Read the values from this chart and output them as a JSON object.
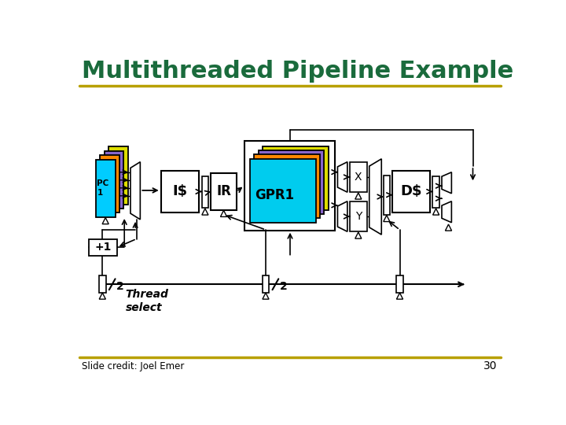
{
  "title": "Multithreaded Pipeline Example",
  "title_color": "#1a6b3c",
  "title_fontsize": 22,
  "slide_credit": "Slide credit: Joel Emer",
  "page_number": "30",
  "bg_color": "#ffffff",
  "title_underline_color": "#b8a000",
  "bottom_line_color": "#b8a000",
  "pc_colors": [
    "#00ccff",
    "#ff8800",
    "#8866cc",
    "#dddd00"
  ],
  "gpr_colors": [
    "#00ccee",
    "#ff8800",
    "#8866cc",
    "#dddd00"
  ]
}
